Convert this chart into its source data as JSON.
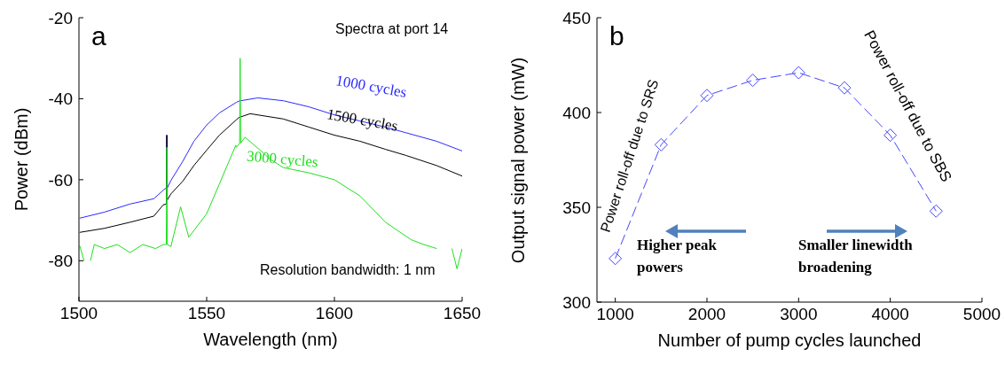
{
  "chart_data": [
    {
      "type": "line",
      "title": "a",
      "xlabel": "Wavelength (nm)",
      "ylabel": "Power (dBm)",
      "xlim": [
        1500,
        1650
      ],
      "xticks": [
        1500,
        1550,
        1600,
        1650
      ],
      "ylim": [
        -90,
        -20
      ],
      "yticks": [
        -80,
        -60,
        -40,
        -20
      ],
      "grid": false,
      "legend": false,
      "marker": "none",
      "line_style": "solid",
      "annotations": [
        "Spectra  at port 14",
        "Resolution bandwidth: 1 nm"
      ],
      "series": [
        {
          "name": "1000 cycles",
          "color": "#2a2aff",
          "x": [
            1500.3,
            1510,
            1520,
            1529.3,
            1533,
            1534.2,
            1534.4,
            1534.6,
            1536,
            1540.6,
            1545,
            1550,
            1555,
            1561.6,
            1562.9,
            1563.1,
            1563.3,
            1570,
            1580,
            1590,
            1600,
            1610,
            1620,
            1628,
            1640,
            1650
          ],
          "values": [
            -69.5,
            -68,
            -66,
            -64.7,
            -62.6,
            -62,
            -49,
            -62,
            -60.2,
            -55.5,
            -50.5,
            -46.5,
            -43.5,
            -40.9,
            -40.5,
            -40.5,
            -40.5,
            -39.8,
            -40.5,
            -42,
            -44,
            -45.5,
            -47,
            -48.4,
            -50.5,
            -52.9
          ]
        },
        {
          "name": "1500 cycles",
          "color": "#000000",
          "x": [
            1500.3,
            1510,
            1520,
            1529.3,
            1533,
            1534.2,
            1534.4,
            1534.6,
            1536,
            1540.6,
            1545,
            1550,
            1555,
            1561.6,
            1562.9,
            1563.1,
            1563.3,
            1567,
            1580,
            1590,
            1600,
            1610,
            1620,
            1628,
            1640,
            1650
          ],
          "values": [
            -73,
            -72,
            -70.5,
            -69,
            -66.2,
            -66,
            -49,
            -65,
            -63.5,
            -60.4,
            -56.5,
            -52.7,
            -49,
            -45.2,
            -44.5,
            -44.5,
            -44.5,
            -43.7,
            -45,
            -47,
            -49,
            -50.5,
            -52.5,
            -54,
            -56.5,
            -59.1
          ]
        },
        {
          "name": "3000 cycles",
          "color": "#1ee01e",
          "x": [
            1500.3,
            1502,
            1503.5,
            1504.5,
            1506,
            1510,
            1515,
            1520,
            1525,
            1530,
            1533,
            1534.2,
            1534.4,
            1534.6,
            1536,
            1539.8,
            1543,
            1550,
            1555,
            1561.4,
            1561.6,
            1562.9,
            1563.1,
            1563.3,
            1565,
            1572,
            1575,
            1580,
            1590,
            1600,
            1610,
            1620,
            1630,
            1635,
            1640,
            1642,
            1646,
            1648,
            1650
          ],
          "values": [
            -76.3,
            -80,
            null,
            -80,
            -76,
            -77,
            -76,
            -78,
            -76,
            -77,
            -76,
            -76,
            -52,
            -76,
            -76.5,
            -66.7,
            -74.2,
            -68.4,
            -61,
            -51.5,
            -52,
            -51,
            -30,
            -51,
            -49.5,
            -53.3,
            -55,
            -57,
            -58.3,
            -60,
            -64,
            -70.5,
            -74.8,
            -76,
            -77,
            null,
            -77,
            -82,
            -77
          ]
        }
      ]
    },
    {
      "type": "line",
      "title": "b",
      "xlabel": "Number of pump cycles launched",
      "ylabel": "Output signal power (mW)",
      "xlim": [
        800,
        5000
      ],
      "xticks": [
        1000,
        2000,
        3000,
        4000,
        5000
      ],
      "ylim": [
        300,
        450
      ],
      "yticks": [
        300,
        350,
        400,
        450
      ],
      "grid": false,
      "legend": false,
      "marker": "diamond",
      "line_style": "dashed",
      "annotations": [
        "Power roll-off due to SRS",
        "Power roll-off due to SBS",
        "Higher peak powers",
        "Smaller linewidth broadening"
      ],
      "series": [
        {
          "color": "#4646ff",
          "x": [
            1000,
            1500,
            2000,
            2500,
            3000,
            3500,
            4000,
            4500
          ],
          "values": [
            323,
            383,
            409,
            417,
            421,
            413,
            388,
            348
          ]
        }
      ]
    }
  ]
}
